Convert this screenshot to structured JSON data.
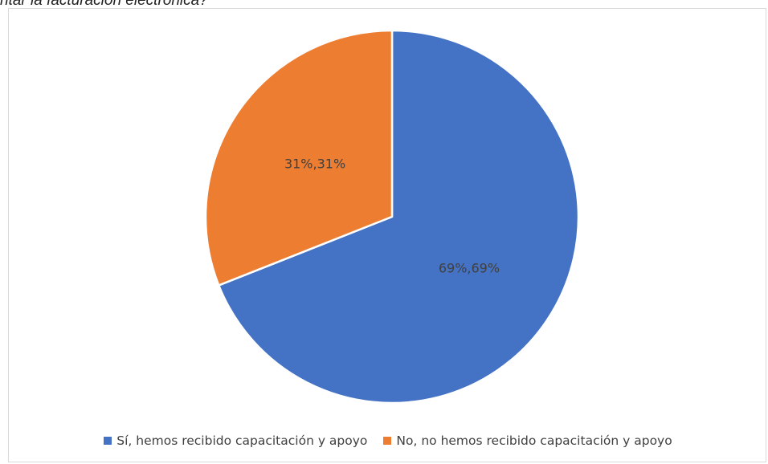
{
  "caption": "ntar la facturación electrónica?",
  "chart_data": {
    "type": "pie",
    "title": "",
    "series": [
      {
        "name": "",
        "slices": [
          {
            "label": "Sí, hemos recibido capacitación y apoyo",
            "value": 69,
            "data_label": "69%,69%",
            "color": "#4472C4"
          },
          {
            "label": "No, no hemos recibido capacitación y apoyo",
            "value": 31,
            "data_label": "31%,31%",
            "color": "#ED7D31"
          }
        ]
      }
    ],
    "legend_position": "bottom"
  }
}
